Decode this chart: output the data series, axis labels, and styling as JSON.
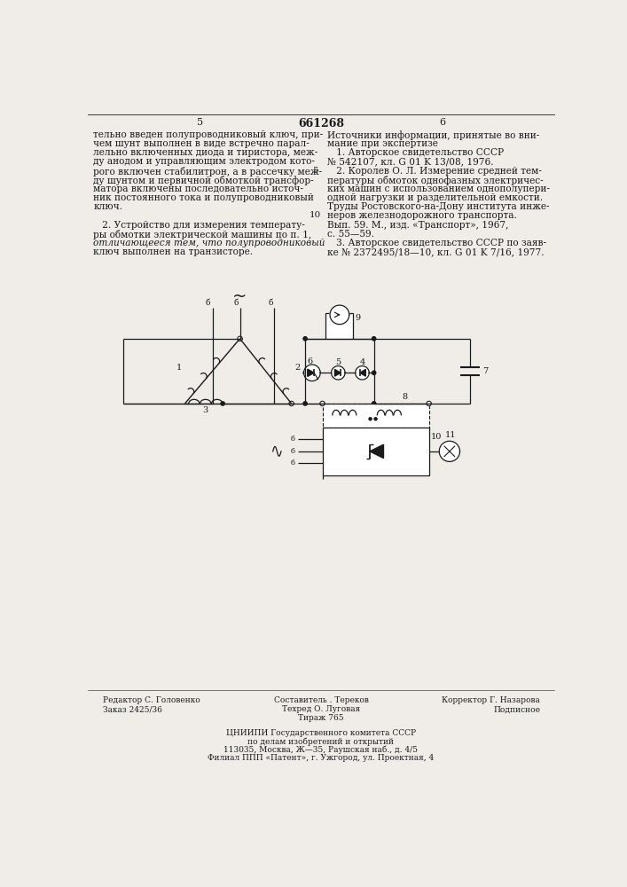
{
  "title": "661268",
  "page_left": "5",
  "page_right": "6",
  "bg_color": "#f0ede8",
  "text_color": "#1a1a1a",
  "left_column_text": [
    "тельно введен полупроводниковый ключ, при-",
    "чем шунт выполнен в виде встречно парал-",
    "лельно включенных диода и тиристора, меж-",
    "ду анодом и управляющим электродом кото-",
    "рого включен стабилитрон, а в рассечку меж-",
    "ду шунтом и первичной обмоткой трансфор-",
    "матора включены последовательно источ-",
    "ник постоянного тока и полупроводниковый",
    "ключ.",
    "",
    "   2. Устройство для измерения температу-",
    "ры обмотки электрической машины по п. 1,",
    "отличающееся тем, что полупроводниковый",
    "ключ выполнен на транзисторе."
  ],
  "right_col_title": "Источники информации, принятые во вни-",
  "right_col_lines": [
    "мание при экспертизе",
    "   1. Авторское свидетельство СССР",
    "№ 542107, кл. G 01 K 13/08, 1976.",
    "   2. Королев О. Л. Измерение средней тем-",
    "пературы обмоток однофазных электричес-",
    "ких машин с использованием однополупери-",
    "одной нагрузки и разделительной емкости.",
    "Труды Ростовского-на-Дону института инже-",
    "неров железнодорожного транспорта.",
    "Вып. 59. М., изд. «Транспорт», 1967,",
    "с. 55—59.",
    "   3. Авторское свидетельство СССР по заяв-",
    "ке № 2372495/18—10, кл. G 01 K 7/16, 1977."
  ],
  "footer_left": [
    "Редактор С. Головенко",
    "Заказ 2425/36"
  ],
  "footer_center": [
    "Составитель . Тереков",
    "Техред О. Луговая",
    "Тираж 765"
  ],
  "footer_right": [
    "Корректор Г. Назарова",
    "Подписное"
  ],
  "footer_org1": "ЦНИИПИ Государственного комитета СССР",
  "footer_org2": "по делам изобретений и открытий",
  "footer_addr": "113035, Москва, Ж—35, Раушская наб., д. 4/5",
  "footer_branch": "Филиал ППП «Патент», г. Ужгород, ул. Проектная, 4"
}
